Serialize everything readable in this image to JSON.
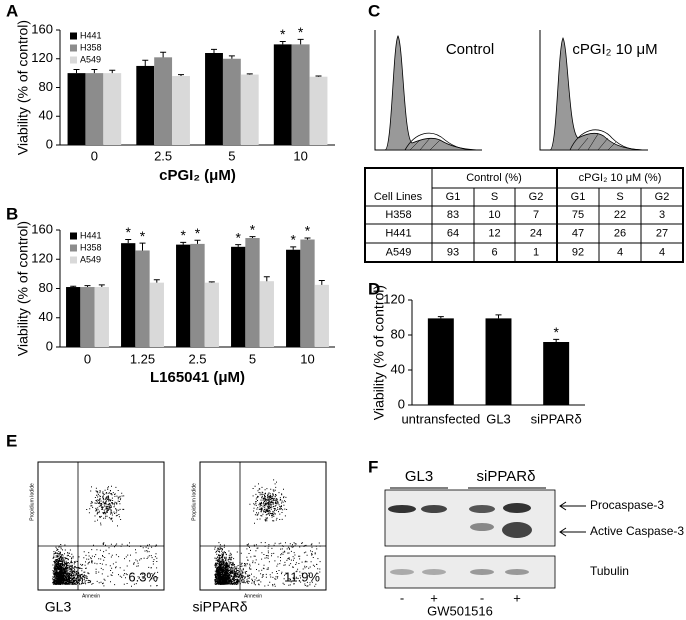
{
  "chart_data": [
    {
      "label": "A",
      "type": "bar",
      "xlabel": "cPGI₂ (μM)",
      "ylabel": "Viability (% of control)",
      "categories": [
        "0",
        "2.5",
        "5",
        "10"
      ],
      "series": [
        {
          "name": "H441",
          "color": "#000000",
          "values": [
            100,
            110,
            128,
            140
          ],
          "errors": [
            5,
            8,
            5,
            4
          ],
          "significance": [
            null,
            null,
            null,
            "*"
          ]
        },
        {
          "name": "H358",
          "color": "#8c8c8c",
          "values": [
            100,
            122,
            120,
            140
          ],
          "errors": [
            5,
            7,
            4,
            7
          ],
          "significance": [
            null,
            null,
            null,
            "*"
          ]
        },
        {
          "name": "A549",
          "color": "#d9d9d9",
          "values": [
            100,
            96,
            98,
            95
          ],
          "errors": [
            4,
            2,
            1,
            1
          ],
          "significance": [
            null,
            null,
            null,
            null
          ]
        }
      ],
      "ylim": [
        0,
        160
      ],
      "yticks": [
        0,
        40,
        80,
        120,
        160
      ],
      "legend": "upper left"
    },
    {
      "label": "B",
      "type": "bar",
      "xlabel": "L165041 (μM)",
      "ylabel": "Viability (% of control)",
      "categories": [
        "0",
        "1.25",
        "2.5",
        "5",
        "10"
      ],
      "series": [
        {
          "name": "H441",
          "color": "#000000",
          "values": [
            82,
            142,
            140,
            137,
            133
          ],
          "errors": [
            1,
            5,
            3,
            3,
            4
          ],
          "significance": [
            null,
            "*",
            "*",
            "*",
            "*"
          ]
        },
        {
          "name": "H358",
          "color": "#8c8c8c",
          "values": [
            82,
            132,
            141,
            149,
            147
          ],
          "errors": [
            2,
            10,
            5,
            2,
            2
          ],
          "significance": [
            null,
            "*",
            "*",
            "*",
            "*"
          ]
        },
        {
          "name": "A549",
          "color": "#d9d9d9",
          "values": [
            82,
            88,
            88,
            90,
            85
          ],
          "errors": [
            3,
            4,
            1,
            6,
            6
          ],
          "significance": [
            null,
            null,
            null,
            null,
            null
          ]
        }
      ],
      "ylim": [
        0,
        160
      ],
      "yticks": [
        0,
        40,
        80,
        120,
        160
      ],
      "legend": "upper left"
    },
    {
      "label": "D",
      "type": "bar",
      "ylabel": "Viability (% of control)",
      "categories": [
        "untransfected",
        "GL3",
        "siPPARδ"
      ],
      "series": [
        {
          "color": "#000000",
          "values": [
            99,
            99,
            72
          ],
          "errors": [
            2,
            4,
            3
          ],
          "significance": [
            null,
            null,
            "*"
          ]
        }
      ],
      "ylim": [
        0,
        120
      ],
      "yticks": [
        0,
        40,
        80,
        120
      ]
    }
  ],
  "flow_cytometry": {
    "label": "C",
    "histograms": [
      "Control",
      "cPGI₂ 10 μM"
    ],
    "table": {
      "header": [
        "Cell Lines",
        "Control (%)",
        "cPGI₂ 10 μM (%)"
      ],
      "subheader": [
        "G1",
        "S",
        "G2",
        "G1",
        "S",
        "G2"
      ],
      "rows": [
        [
          "H358",
          83,
          10,
          7,
          75,
          22,
          3
        ],
        [
          "H441",
          64,
          12,
          24,
          47,
          26,
          27
        ],
        [
          "A549",
          93,
          6,
          1,
          92,
          4,
          4
        ]
      ]
    }
  },
  "apoptosis": {
    "label": "E",
    "xlabel": "Annexin",
    "ylabel": "Propidium Iodide",
    "plots": [
      {
        "name": "GL3",
        "percent": "6.3%"
      },
      {
        "name": "siPPARδ",
        "percent": "11.9%"
      }
    ]
  },
  "western_blot": {
    "label": "F",
    "groups": [
      "GL3",
      "siPPARδ"
    ],
    "bands": [
      "Procaspase-3",
      "Active Caspase-3",
      "Tubulin"
    ],
    "treatment": [
      "-",
      "+",
      "-",
      "+"
    ],
    "treatment_label": "GW501516"
  }
}
